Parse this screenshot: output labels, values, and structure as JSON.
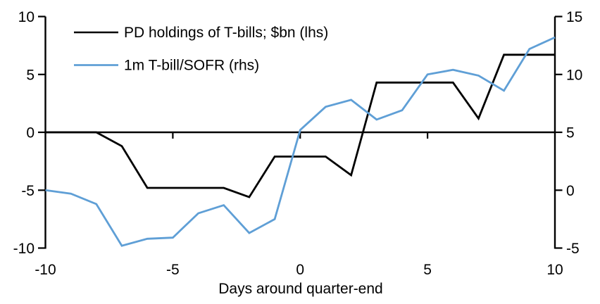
{
  "chart_data": {
    "type": "line",
    "title": "",
    "xlabel": "Days around quarter-end",
    "ylabel_left": "",
    "ylabel_right": "",
    "x": [
      -10,
      -9,
      -8,
      -7,
      -6,
      -5,
      -4,
      -3,
      -2,
      -1,
      0,
      1,
      2,
      3,
      4,
      5,
      6,
      7,
      8,
      9,
      10
    ],
    "series": [
      {
        "name": "PD holdings of T-bills; $bn (lhs)",
        "axis": "left",
        "color": "#000000",
        "values": [
          0,
          0,
          0,
          -1.2,
          -4.8,
          -4.8,
          -4.8,
          -4.8,
          -5.6,
          -2.1,
          -2.1,
          -2.1,
          -3.7,
          4.3,
          4.3,
          4.3,
          4.3,
          1.2,
          6.7,
          6.7,
          6.7
        ]
      },
      {
        "name": "1m T-bill/SOFR (rhs)",
        "axis": "right",
        "color": "#5f9fd6",
        "values": [
          0.0,
          -0.3,
          -1.2,
          -4.8,
          -4.2,
          -4.1,
          -2.0,
          -1.3,
          -3.7,
          -2.5,
          5.2,
          7.2,
          7.8,
          6.1,
          6.9,
          10.0,
          10.4,
          9.9,
          8.6,
          12.2,
          13.2
        ]
      }
    ],
    "left_axis": {
      "range": [
        -10,
        10
      ],
      "ticks": [
        "10",
        "5",
        "0",
        "-5",
        "-10"
      ]
    },
    "right_axis": {
      "range": [
        -5,
        15
      ],
      "ticks": [
        "15",
        "10",
        "5",
        "0",
        "-5"
      ]
    },
    "x_axis": {
      "range": [
        -10,
        10
      ],
      "tick_labels": [
        "-10",
        "-5",
        "0",
        "5",
        "10"
      ],
      "tick_marks": [
        -5,
        0,
        5
      ]
    },
    "grid": false,
    "legend_position": "top-left",
    "zero_line": true
  }
}
